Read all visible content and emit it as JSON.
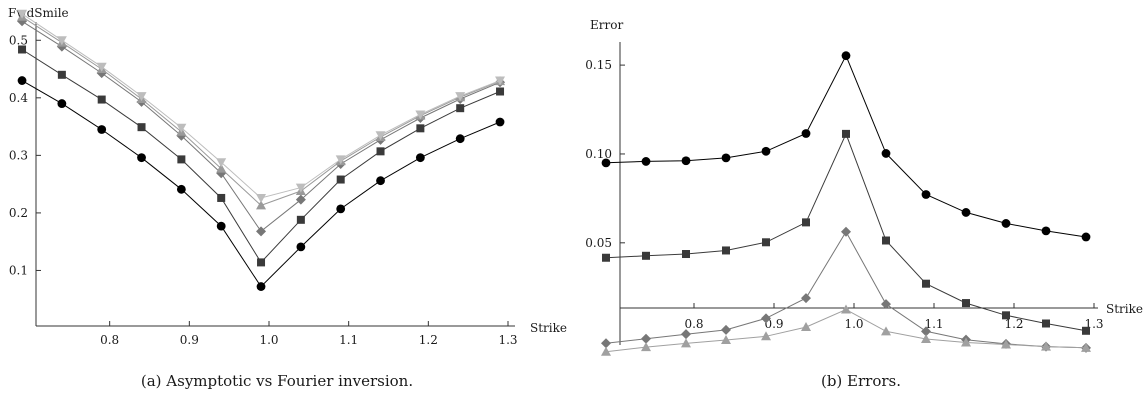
{
  "chart_data": [
    {
      "type": "line",
      "caption": "(a) Asymptotic vs Fourier inversion.",
      "ylabel": "FwdSmile",
      "xlabel": "Strike",
      "xlim": [
        0.7,
        1.3
      ],
      "ylim": [
        0.0,
        0.57
      ],
      "x_ticks": [
        "0.8",
        "0.9",
        "1.0",
        "1.1",
        "1.2",
        "1.3"
      ],
      "y_ticks": [
        "0.1",
        "0.2",
        "0.3",
        "0.4",
        "0.5"
      ],
      "x": [
        0.69,
        0.74,
        0.79,
        0.84,
        0.89,
        0.94,
        0.99,
        1.04,
        1.09,
        1.14,
        1.19,
        1.24,
        1.29
      ],
      "series": [
        {
          "marker": "circle",
          "color": "#000000",
          "values": [
            0.43,
            0.39,
            0.345,
            0.296,
            0.241,
            0.177,
            0.072,
            0.141,
            0.207,
            0.256,
            0.296,
            0.329,
            0.358
          ]
        },
        {
          "marker": "square",
          "color": "#3a3a3a",
          "values": [
            0.484,
            0.44,
            0.397,
            0.349,
            0.293,
            0.226,
            0.114,
            0.188,
            0.258,
            0.307,
            0.347,
            0.382,
            0.411
          ]
        },
        {
          "marker": "diamond",
          "color": "#777777",
          "values": [
            0.533,
            0.489,
            0.443,
            0.393,
            0.334,
            0.269,
            0.168,
            0.223,
            0.285,
            0.327,
            0.365,
            0.398,
            0.427
          ]
        },
        {
          "marker": "triangle-up",
          "color": "#9a9a9a",
          "values": [
            0.541,
            0.496,
            0.45,
            0.398,
            0.341,
            0.277,
            0.213,
            0.238,
            0.29,
            0.332,
            0.369,
            0.401,
            0.429
          ]
        },
        {
          "marker": "triangle-down",
          "color": "#bdbdbd",
          "values": [
            0.546,
            0.5,
            0.454,
            0.403,
            0.348,
            0.288,
            0.226,
            0.244,
            0.293,
            0.335,
            0.371,
            0.403,
            0.43
          ]
        }
      ]
    },
    {
      "type": "line",
      "caption": "(b) Errors.",
      "ylabel": "Error",
      "xlabel": "Strike",
      "xlim": [
        0.7,
        1.3
      ],
      "ylim": [
        -0.012,
        0.163
      ],
      "x_ticks": [
        "0.8",
        "0.9",
        "1.0",
        "1.1",
        "1.2",
        "1.3"
      ],
      "y_ticks": [
        "0.05",
        "0.10",
        "0.15"
      ],
      "x": [
        0.69,
        0.74,
        0.79,
        0.84,
        0.89,
        0.94,
        0.99,
        1.04,
        1.09,
        1.14,
        1.19,
        1.24,
        1.29
      ],
      "series": [
        {
          "marker": "circle",
          "color": "#000000",
          "values": [
            0.095,
            0.0958,
            0.0962,
            0.0978,
            0.1015,
            0.1115,
            0.1553,
            0.1003,
            0.0772,
            0.0671,
            0.0609,
            0.0567,
            0.0533
          ]
        },
        {
          "marker": "square",
          "color": "#3a3a3a",
          "values": [
            0.0416,
            0.0427,
            0.0437,
            0.0457,
            0.0503,
            0.0615,
            0.1113,
            0.0513,
            0.027,
            0.0161,
            0.0092,
            0.0046,
            0.0005
          ]
        },
        {
          "marker": "diamond",
          "color": "#777777",
          "values": [
            -0.0065,
            -0.004,
            -0.0014,
            0.001,
            0.0075,
            0.0189,
            0.0562,
            0.0155,
            0.0002,
            -0.0045,
            -0.0069,
            -0.0084,
            -0.0091
          ]
        },
        {
          "marker": "triangle-up",
          "color": "#a0a0a0",
          "values": [
            -0.0113,
            -0.0087,
            -0.0066,
            -0.0047,
            -0.0026,
            0.0026,
            0.0125,
            0.0002,
            -0.0041,
            -0.0061,
            -0.0072,
            -0.0084,
            -0.0091
          ]
        }
      ]
    }
  ]
}
